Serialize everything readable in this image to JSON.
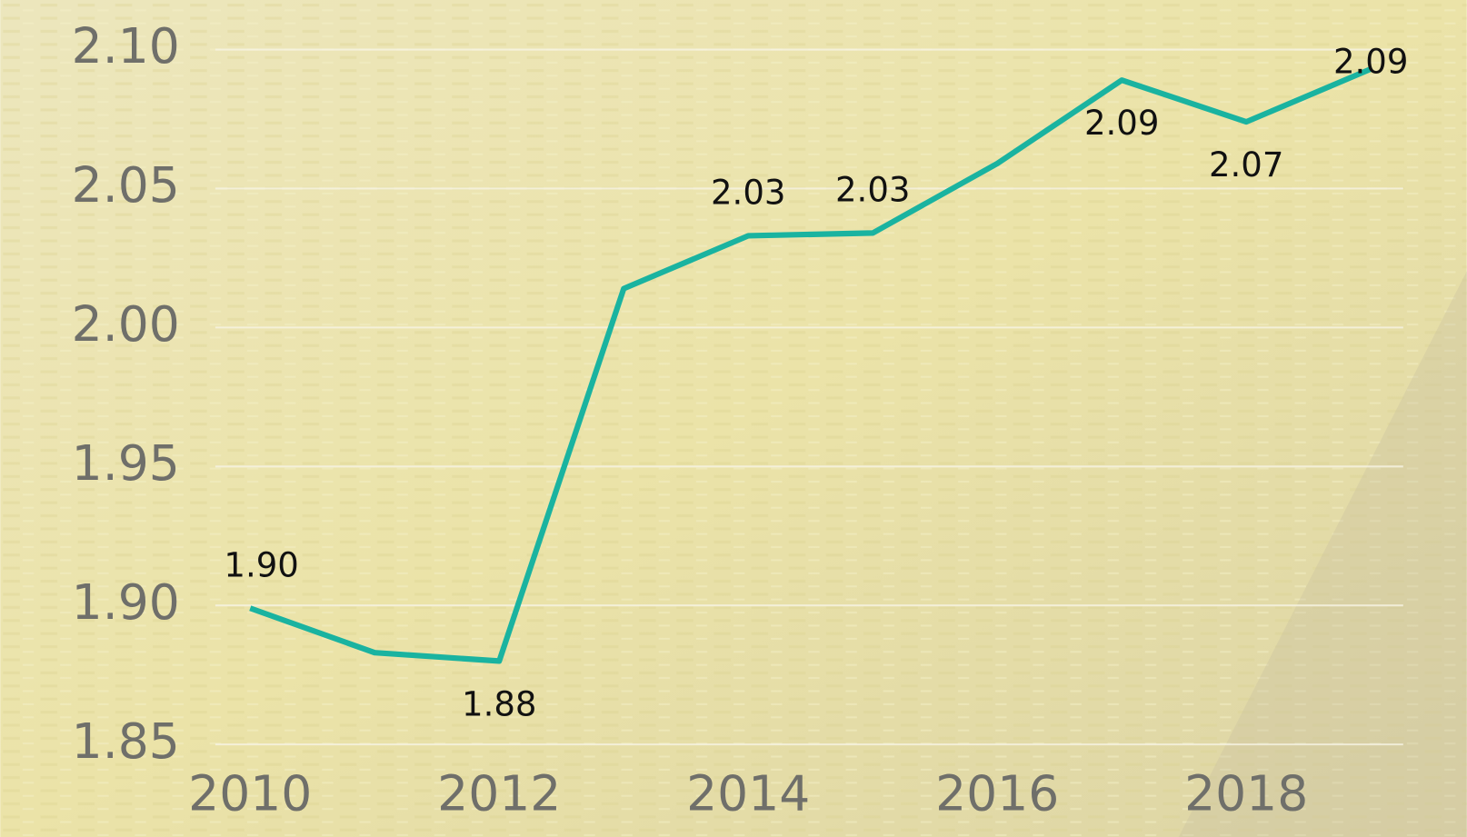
{
  "chart_data": {
    "type": "line",
    "x": [
      2010,
      2011,
      2012,
      2013,
      2014,
      2015,
      2016,
      2017,
      2018,
      2019
    ],
    "series": [
      {
        "color": "#1ab3a0",
        "values": [
          1.899,
          1.883,
          1.88,
          2.014,
          2.033,
          2.034,
          2.059,
          2.089,
          2.074,
          2.093
        ],
        "value_labels": [
          "1.90",
          null,
          "1.88",
          null,
          "2.03",
          "2.03",
          null,
          "2.09",
          "2.07",
          "2.09"
        ]
      }
    ],
    "xlim": [
      2009.72,
      2019.26
    ],
    "xticks": [
      2010,
      2012,
      2014,
      2016,
      2018
    ],
    "ylim": [
      1.85,
      2.1
    ],
    "yticks": [
      {
        "value": 1.85,
        "label": "1.85"
      },
      {
        "value": 1.9,
        "label": "1.90"
      },
      {
        "value": 1.95,
        "label": "1.95"
      },
      {
        "value": 2.0,
        "label": "2.00"
      },
      {
        "value": 2.05,
        "label": "2.05"
      },
      {
        "value": 2.1,
        "label": "2.10"
      }
    ],
    "grid": true
  }
}
